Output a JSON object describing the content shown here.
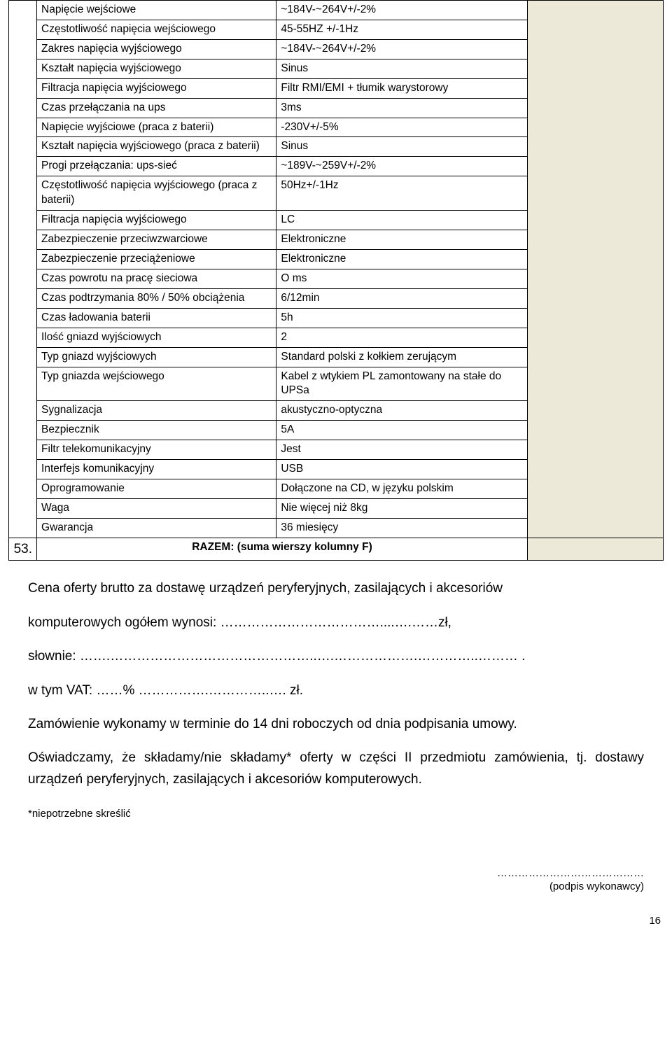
{
  "specs": [
    {
      "param": "Napięcie wejściowe",
      "val": "~184V-~264V+/-2%"
    },
    {
      "param": "Częstotliwość napięcia wejściowego",
      "val": "45-55HZ +/-1Hz"
    },
    {
      "param": "Zakres napięcia wyjściowego",
      "val": "~184V-~264V+/-2%"
    },
    {
      "param": "Kształt napięcia wyjściowego",
      "val": "Sinus"
    },
    {
      "param": "Filtracja napięcia wyjściowego",
      "val": "Filtr RMI/EMI + tłumik warystorowy"
    },
    {
      "param": "Czas przełączania na ups",
      "val": "3ms"
    },
    {
      "param": "Napięcie wyjściowe (praca z baterii)",
      "val": "-230V+/-5%"
    },
    {
      "param": "Kształt napięcia wyjściowego (praca z baterii)",
      "val": "Sinus"
    },
    {
      "param": "Progi przełączania: ups-sieć",
      "val": "~189V-~259V+/-2%"
    },
    {
      "param": "Częstotliwość napięcia wyjściowego (praca z baterii)",
      "val": "50Hz+/-1Hz"
    },
    {
      "param": "Filtracja napięcia wyjściowego",
      "val": "LC"
    },
    {
      "param": "Zabezpieczenie przeciwzwarciowe",
      "val": "Elektroniczne"
    },
    {
      "param": "Zabezpieczenie przeciążeniowe",
      "val": "Elektroniczne"
    },
    {
      "param": "Czas powrotu na pracę sieciowa",
      "val": "O ms"
    },
    {
      "param": "Czas podtrzymania 80% / 50% obciążenia",
      "val": "6/12min"
    },
    {
      "param": "Czas ładowania baterii",
      "val": "5h"
    },
    {
      "param": "Ilość gniazd wyjściowych",
      "val": "2"
    },
    {
      "param": "Typ gniazd wyjściowych",
      "val": "Standard polski z kołkiem zerującym"
    },
    {
      "param": "Typ gniazda wejściowego",
      "val": "Kabel z wtykiem PL zamontowany na stałe do UPSa"
    },
    {
      "param": "Sygnalizacja",
      "val": "akustyczno-optyczna"
    },
    {
      "param": "Bezpiecznik",
      "val": "5A"
    },
    {
      "param": "Filtr telekomunikacyjny",
      "val": "Jest"
    },
    {
      "param": "Interfejs komunikacyjny",
      "val": "USB"
    },
    {
      "param": "Oprogramowanie",
      "val": "Dołączone na CD, w języku polskim"
    },
    {
      "param": "Waga",
      "val": "Nie więcej niż 8kg"
    },
    {
      "param": "Gwarancja",
      "val": "36 miesięcy"
    }
  ],
  "groups": [
    3,
    3,
    1,
    6,
    2,
    1,
    4,
    1,
    1,
    1,
    1,
    1,
    1
  ],
  "row53": "53.",
  "razem": "RAZEM: (suma wierszy kolumny F)",
  "p1": "Cena oferty brutto za dostawę urządzeń peryferyjnych, zasilających i akcesoriów",
  "p2": "komputerowych ogółem wynosi: ………………………………....….……zł,",
  "p3": " słownie: …….………………………………………..….……………….…………..……… .",
  "p4": "w tym VAT: ……% …………….…………..…. zł.",
  "p5": "Zamówienie wykonamy w terminie do 14 dni roboczych od dnia podpisania umowy.",
  "p6": "Oświadczamy, że składamy/nie składamy* oferty w części II przedmiotu zamówienia, tj. dostawy urządzeń peryferyjnych, zasilających i akcesoriów komputerowych.",
  "p7pre": "*",
  "p7": "niepotrzebne skreślić",
  "sig1": "……………………………………",
  "sig2": "(podpis wykonawcy)",
  "pagenum": "16"
}
